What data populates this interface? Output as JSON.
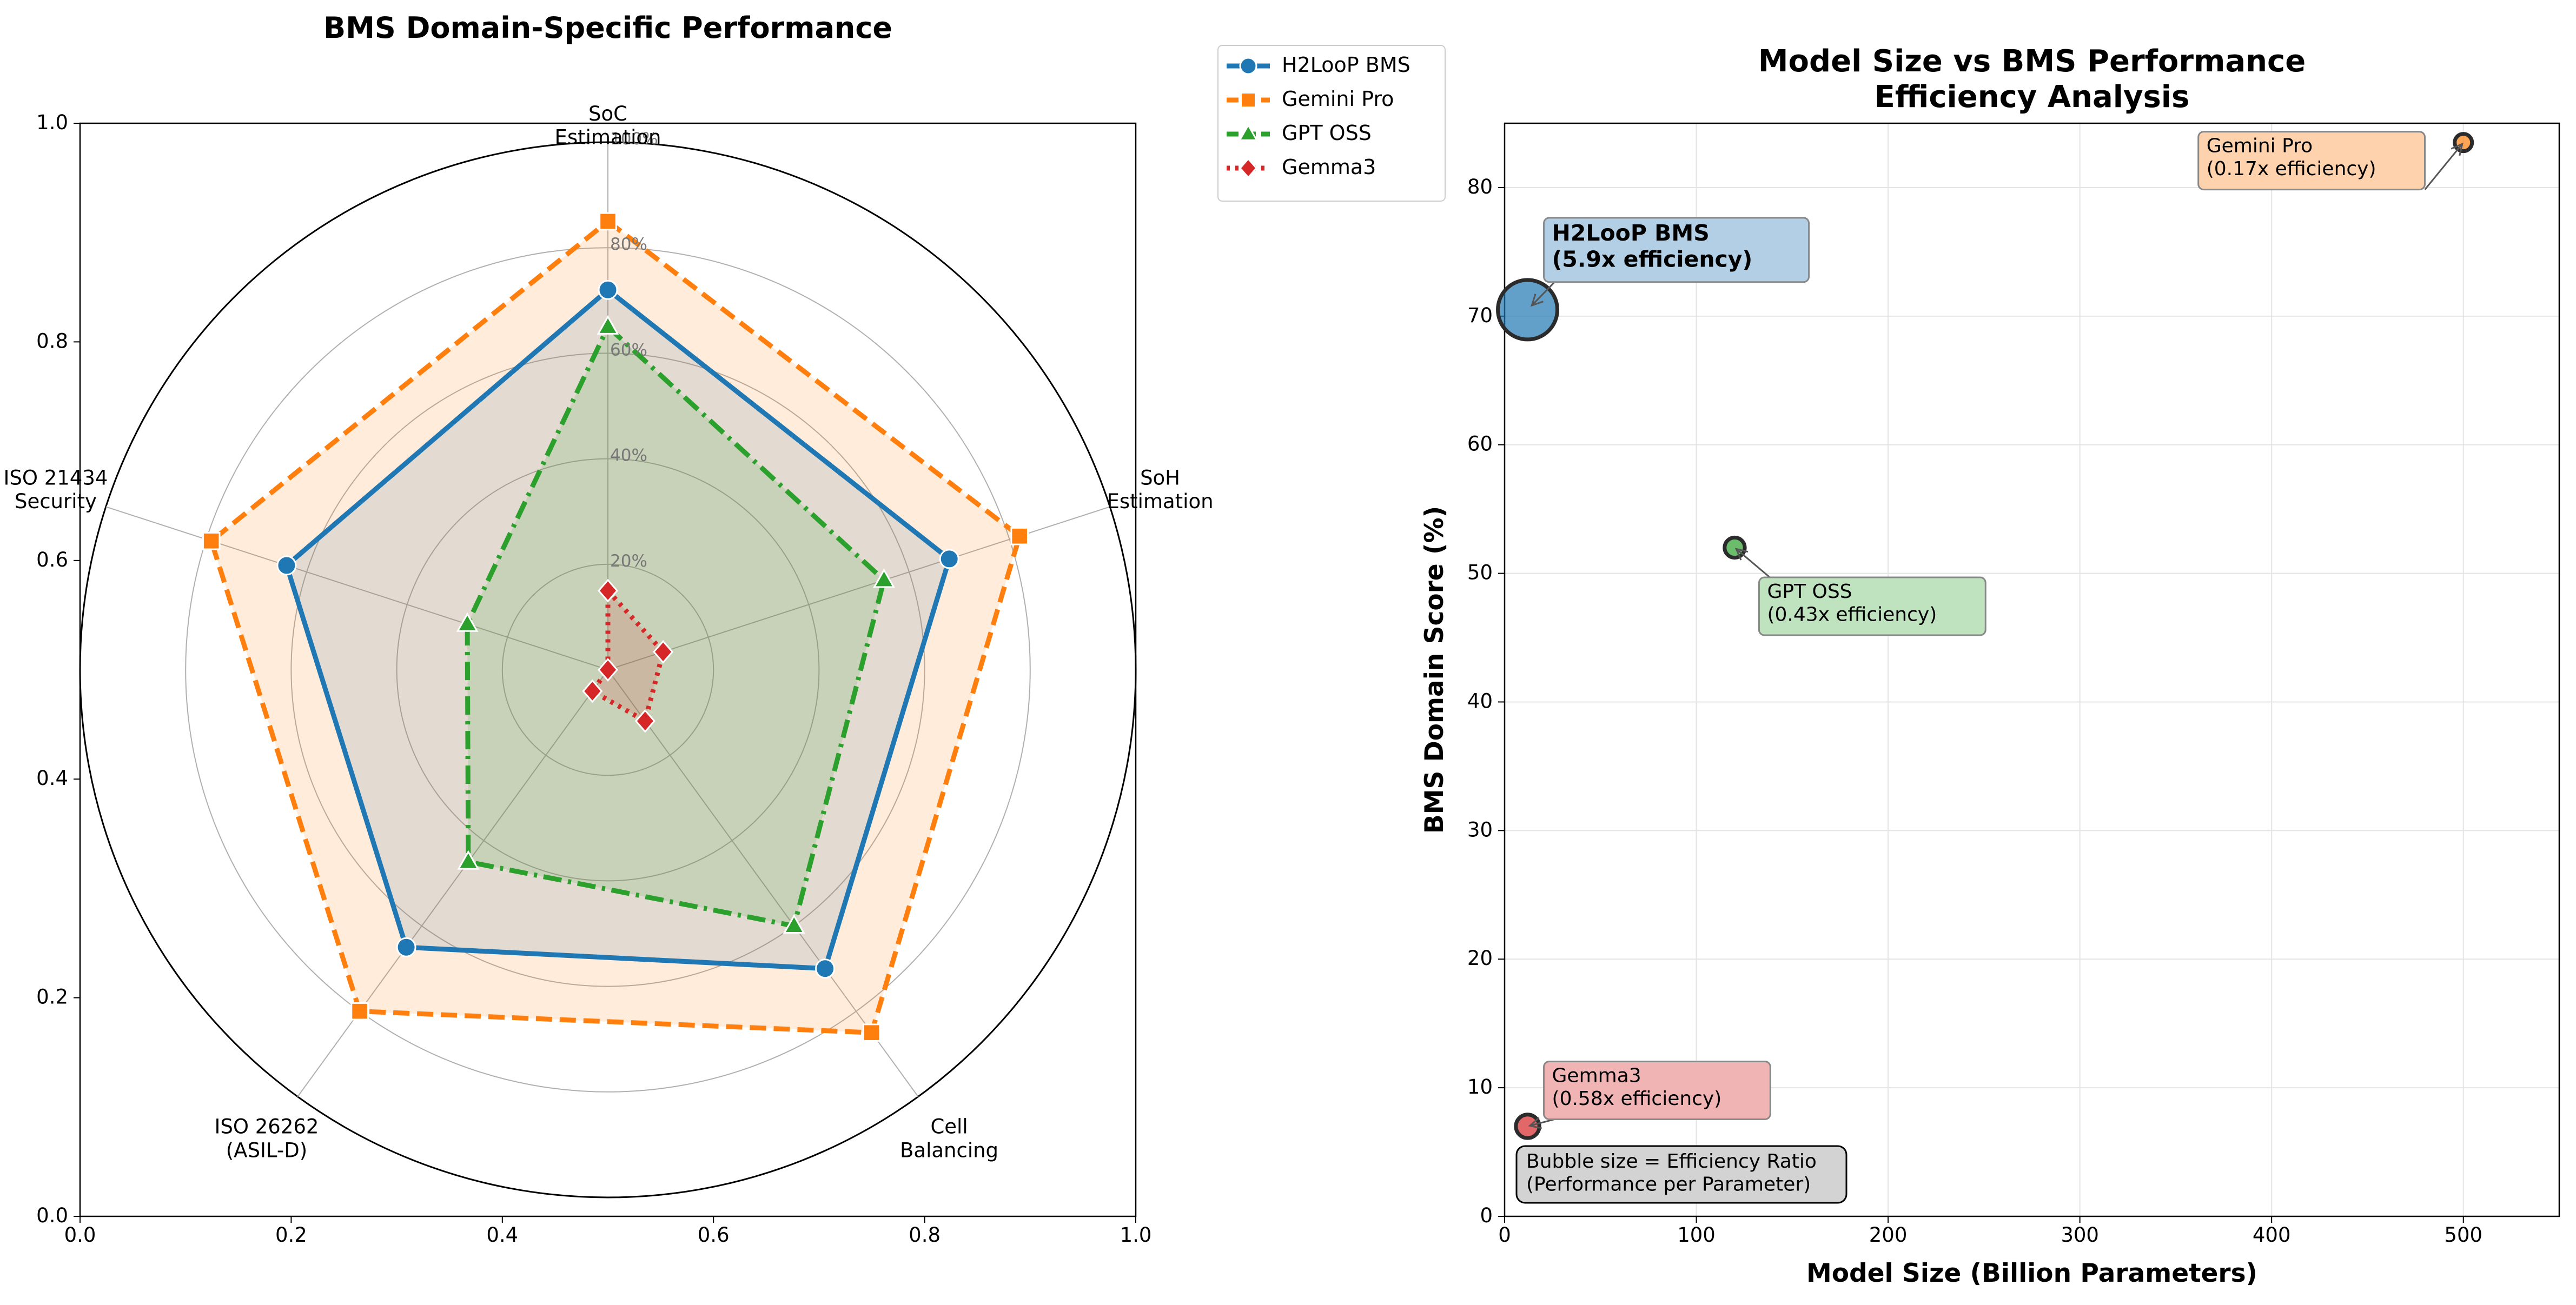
{
  "chart_data": [
    {
      "type": "radar",
      "title": "BMS Domain-Specific Performance",
      "categories": [
        "SoC\nEstimation",
        "SoH\nEstimation",
        "Cell\nBalancing",
        "ISO 26262\n(ASIL-D)",
        "ISO 21434\nSecurity"
      ],
      "radial_ticks": [
        "20%",
        "40%",
        "60%",
        "80%",
        "100%"
      ],
      "rlim": [
        0,
        100
      ],
      "cartesian_frame": {
        "xlim": [
          0,
          1
        ],
        "ylim": [
          0,
          1
        ],
        "ticks": [
          "0.0",
          "0.2",
          "0.4",
          "0.6",
          "0.8",
          "1.0"
        ]
      },
      "legend_position": "upper right, outside plot",
      "series": [
        {
          "name": "H2LooP BMS",
          "values": [
            72,
            68,
            70,
            65,
            64
          ],
          "color": "#1f77b4",
          "marker": "circle",
          "line": "solid"
        },
        {
          "name": "Gemini Pro",
          "values": [
            85,
            82,
            85,
            80,
            79
          ],
          "color": "#ff7f0e",
          "marker": "square",
          "line": "dashed"
        },
        {
          "name": "GPT OSS",
          "values": [
            65,
            55,
            60,
            45,
            28
          ],
          "color": "#2ca02c",
          "marker": "triangle",
          "line": "dashdot"
        },
        {
          "name": "Gemma3",
          "values": [
            15,
            11,
            12,
            5,
            0
          ],
          "color": "#d62728",
          "marker": "diamond",
          "line": "dotted"
        }
      ]
    },
    {
      "type": "scatter",
      "title": "Model Size vs BMS Performance\nEfficiency Analysis",
      "xlabel": "Model Size (Billion Parameters)",
      "ylabel": "BMS Domain Score (%)",
      "xlim": [
        0,
        550
      ],
      "ylim": [
        0,
        85
      ],
      "xticks": [
        0,
        100,
        200,
        300,
        400,
        500
      ],
      "yticks": [
        0,
        10,
        20,
        30,
        40,
        50,
        60,
        70,
        80
      ],
      "grid": true,
      "points": [
        {
          "name": "H2LooP BMS",
          "x": 12,
          "y": 70.5,
          "efficiency": 5.9,
          "label": "H2LooP BMS\n(5.9x efficiency)",
          "color": "#1f77b4",
          "bold": true
        },
        {
          "name": "Gemini Pro",
          "x": 500,
          "y": 83.5,
          "efficiency": 0.17,
          "label": "Gemini Pro\n(0.17x efficiency)",
          "color": "#ff7f0e",
          "bold": false
        },
        {
          "name": "GPT OSS",
          "x": 120,
          "y": 52,
          "efficiency": 0.43,
          "label": "GPT OSS\n(0.43x efficiency)",
          "color": "#2ca02c",
          "bold": false
        },
        {
          "name": "Gemma3",
          "x": 12,
          "y": 7,
          "efficiency": 0.58,
          "label": "Gemma3\n(0.58x efficiency)",
          "color": "#d62728",
          "bold": false
        }
      ],
      "note": "Bubble size = Efficiency Ratio\n(Performance per Parameter)"
    }
  ]
}
